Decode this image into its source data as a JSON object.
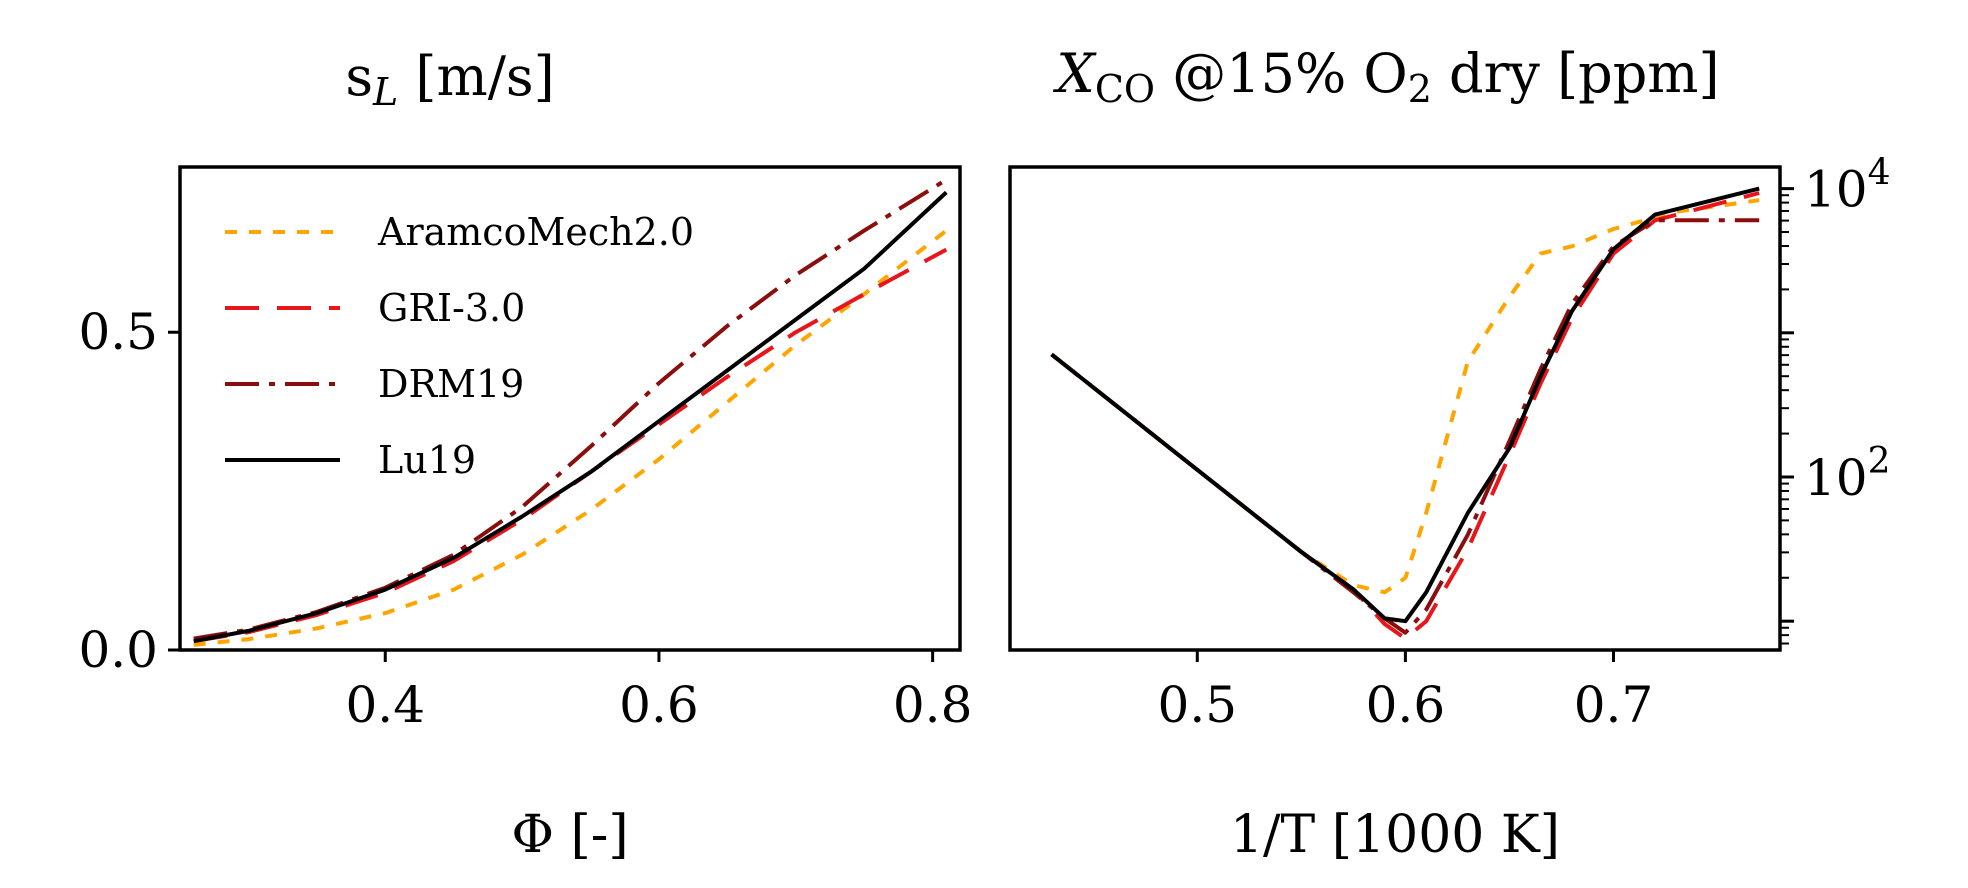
{
  "chart_data": [
    {
      "type": "line",
      "title": "s_L [m/s]",
      "xlabel": "Φ [-]",
      "ylabel": "",
      "xlim": [
        0.25,
        0.82
      ],
      "ylim": [
        0.0,
        0.76
      ],
      "xticks": [
        "0.4",
        "0.6",
        "0.8"
      ],
      "xtick_values": [
        0.4,
        0.6,
        0.8
      ],
      "yticks": [
        "0.0",
        "0.5"
      ],
      "ytick_values": [
        0.0,
        0.5
      ],
      "grid": false,
      "legend": "upper-left",
      "series": [
        {
          "name": "AramcoMech2.0",
          "color": "#ffa500",
          "dash": "dashed-short",
          "x": [
            0.26,
            0.3,
            0.35,
            0.4,
            0.45,
            0.5,
            0.55,
            0.6,
            0.65,
            0.7,
            0.75,
            0.81
          ],
          "y": [
            0.008,
            0.017,
            0.034,
            0.058,
            0.095,
            0.15,
            0.22,
            0.3,
            0.39,
            0.48,
            0.56,
            0.66
          ]
        },
        {
          "name": "GRI-3.0",
          "color": "#e8151a",
          "dash": "dashed-long",
          "x": [
            0.26,
            0.3,
            0.35,
            0.4,
            0.45,
            0.5,
            0.55,
            0.6,
            0.65,
            0.7,
            0.75,
            0.81
          ],
          "y": [
            0.014,
            0.028,
            0.055,
            0.09,
            0.14,
            0.205,
            0.28,
            0.355,
            0.43,
            0.5,
            0.56,
            0.63
          ]
        },
        {
          "name": "DRM19",
          "color": "#8b0e0e",
          "dash": "dash-dot",
          "x": [
            0.26,
            0.3,
            0.35,
            0.4,
            0.45,
            0.5,
            0.55,
            0.6,
            0.65,
            0.7,
            0.75,
            0.81
          ],
          "y": [
            0.018,
            0.032,
            0.06,
            0.098,
            0.15,
            0.225,
            0.32,
            0.42,
            0.51,
            0.59,
            0.66,
            0.74
          ]
        },
        {
          "name": "Lu19",
          "color": "#000000",
          "dash": "solid",
          "x": [
            0.26,
            0.3,
            0.35,
            0.4,
            0.45,
            0.5,
            0.55,
            0.6,
            0.65,
            0.7,
            0.75,
            0.81
          ],
          "y": [
            0.014,
            0.03,
            0.058,
            0.095,
            0.145,
            0.21,
            0.28,
            0.36,
            0.44,
            0.52,
            0.6,
            0.72
          ]
        }
      ]
    },
    {
      "type": "line",
      "title": "X_CO @15% O2 dry [ppm]",
      "xlabel": "1/T [1000 K]",
      "ylabel": "",
      "xlim": [
        0.41,
        0.78
      ],
      "ylim_log10": [
        0.8,
        4.15
      ],
      "yscale": "log",
      "y_axis_side": "right",
      "xticks": [
        "0.5",
        "0.6",
        "0.7"
      ],
      "xtick_values": [
        0.5,
        0.6,
        0.7
      ],
      "yticks": [
        "10^4",
        "10^2"
      ],
      "ytick_log10": [
        4,
        2
      ],
      "grid": false,
      "series": [
        {
          "name": "AramcoMech2.0",
          "color": "#ffa500",
          "dash": "dashed-short",
          "x": [
            0.43,
            0.5,
            0.55,
            0.575,
            0.59,
            0.6,
            0.61,
            0.63,
            0.65,
            0.665,
            0.68,
            0.7,
            0.73,
            0.77
          ],
          "log10y": [
            2.85,
            2.05,
            1.48,
            1.25,
            1.2,
            1.3,
            1.75,
            2.8,
            3.25,
            3.55,
            3.6,
            3.72,
            3.84,
            3.92
          ]
        },
        {
          "name": "GRI-3.0",
          "color": "#e8151a",
          "dash": "dashed-long",
          "x": [
            0.43,
            0.5,
            0.55,
            0.575,
            0.59,
            0.6,
            0.61,
            0.63,
            0.65,
            0.665,
            0.68,
            0.7,
            0.72,
            0.77
          ],
          "log10y": [
            2.85,
            2.05,
            1.48,
            1.22,
            0.98,
            0.88,
            1.0,
            1.5,
            2.15,
            2.65,
            3.1,
            3.55,
            3.78,
            3.97
          ]
        },
        {
          "name": "DRM19",
          "color": "#8b0e0e",
          "dash": "dash-dot",
          "x": [
            0.43,
            0.5,
            0.55,
            0.575,
            0.59,
            0.6,
            0.61,
            0.63,
            0.65,
            0.665,
            0.68,
            0.7,
            0.72,
            0.77
          ],
          "log10y": [
            2.85,
            2.05,
            1.48,
            1.2,
            1.02,
            0.92,
            1.08,
            1.6,
            2.25,
            2.75,
            3.2,
            3.6,
            3.78,
            3.78
          ]
        },
        {
          "name": "Lu19",
          "color": "#000000",
          "dash": "solid",
          "x": [
            0.43,
            0.5,
            0.55,
            0.575,
            0.59,
            0.6,
            0.61,
            0.63,
            0.65,
            0.665,
            0.68,
            0.7,
            0.72,
            0.77
          ],
          "log10y": [
            2.85,
            2.05,
            1.48,
            1.22,
            1.02,
            1.0,
            1.2,
            1.75,
            2.2,
            2.7,
            3.15,
            3.58,
            3.82,
            4.0
          ]
        }
      ]
    }
  ]
}
